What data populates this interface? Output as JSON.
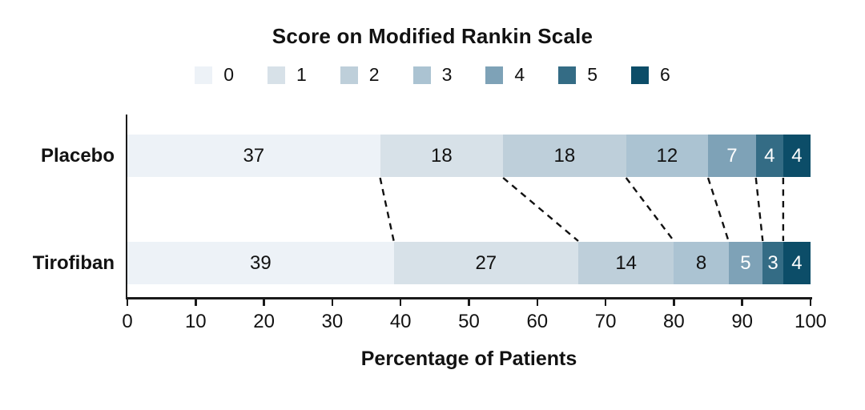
{
  "chart_data": {
    "type": "bar",
    "variant": "horizontal-stacked",
    "title": "Score on Modified Rankin Scale",
    "xlabel": "Percentage of Patients",
    "xlim": [
      0,
      100
    ],
    "xticks": [
      0,
      10,
      20,
      30,
      40,
      50,
      60,
      70,
      80,
      90,
      100
    ],
    "legend": {
      "position": "top",
      "entries": [
        "0",
        "1",
        "2",
        "3",
        "4",
        "5",
        "6"
      ]
    },
    "colors": [
      "#EDF2F7",
      "#D7E1E8",
      "#BECFDA",
      "#ABC3D2",
      "#7EA2B7",
      "#346C85",
      "#0C4D68"
    ],
    "label_colors": [
      "#121212",
      "#121212",
      "#121212",
      "#121212",
      "#FFFFFF",
      "#FFFFFF",
      "#FFFFFF"
    ],
    "categories": [
      "Placebo",
      "Tirofiban"
    ],
    "series": [
      {
        "name": "Placebo",
        "values": [
          37,
          18,
          18,
          12,
          7,
          4,
          4
        ]
      },
      {
        "name": "Tirofiban",
        "values": [
          39,
          27,
          14,
          8,
          5,
          3,
          4
        ]
      }
    ],
    "connectors": {
      "style": "dashed",
      "color": "#111111",
      "note": "dashed lines join cumulative segment boundaries of the two bars",
      "placebo_boundaries": [
        37,
        55,
        73,
        85,
        92,
        96
      ],
      "tirofiban_boundaries": [
        39,
        66,
        80,
        88,
        93,
        96
      ]
    },
    "grid": false
  }
}
